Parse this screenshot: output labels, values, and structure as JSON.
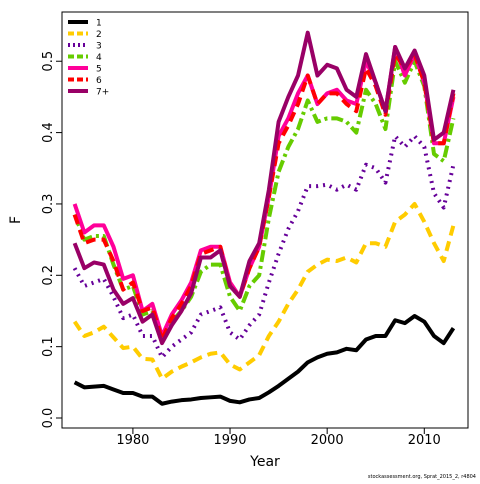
{
  "chart_data": {
    "type": "line",
    "xlabel": "Year",
    "ylabel": "F",
    "footnote": "stockassessment.org, Sprat_2015_2, r4804",
    "x": [
      1974,
      1975,
      1976,
      1977,
      1978,
      1979,
      1980,
      1981,
      1982,
      1983,
      1984,
      1985,
      1986,
      1987,
      1988,
      1989,
      1990,
      1991,
      1992,
      1993,
      1994,
      1995,
      1996,
      1997,
      1998,
      1999,
      2000,
      2001,
      2002,
      2003,
      2004,
      2005,
      2006,
      2007,
      2008,
      2009,
      2010,
      2011,
      2012,
      2013
    ],
    "xlim": [
      1972.7,
      2014.5
    ],
    "xticks": [
      1980,
      1990,
      2000,
      2010
    ],
    "ylim": [
      -0.014,
      0.569
    ],
    "yticks": [
      {
        "value": 0,
        "label": "0.0"
      },
      0.1,
      0.2,
      0.3,
      0.4,
      0.5
    ],
    "legend": "upper-left",
    "series": [
      {
        "name": "1",
        "color": "#000000",
        "linestyle": "solid",
        "values": [
          0.05,
          0.043,
          0.044,
          0.045,
          0.04,
          0.035,
          0.035,
          0.03,
          0.03,
          0.02,
          0.023,
          0.025,
          0.026,
          0.028,
          0.029,
          0.03,
          0.024,
          0.022,
          0.026,
          0.028,
          0.036,
          0.045,
          0.055,
          0.065,
          0.078,
          0.085,
          0.09,
          0.092,
          0.097,
          0.095,
          0.11,
          0.115,
          0.115,
          0.137,
          0.133,
          0.143,
          0.135,
          0.115,
          0.105,
          0.126
        ]
      },
      {
        "name": "2",
        "color": "#ffcc00",
        "linestyle": "dashed",
        "values": [
          0.135,
          0.115,
          0.12,
          0.128,
          0.113,
          0.098,
          0.1,
          0.083,
          0.082,
          0.055,
          0.065,
          0.072,
          0.078,
          0.085,
          0.09,
          0.092,
          0.075,
          0.068,
          0.078,
          0.088,
          0.115,
          0.135,
          0.16,
          0.18,
          0.205,
          0.215,
          0.222,
          0.22,
          0.225,
          0.218,
          0.245,
          0.245,
          0.24,
          0.275,
          0.285,
          0.3,
          0.275,
          0.245,
          0.22,
          0.27
        ]
      },
      {
        "name": "3",
        "color": "#660099",
        "linestyle": "dotted",
        "values": [
          0.21,
          0.185,
          0.19,
          0.195,
          0.17,
          0.14,
          0.145,
          0.115,
          0.115,
          0.085,
          0.1,
          0.11,
          0.12,
          0.145,
          0.15,
          0.155,
          0.12,
          0.11,
          0.13,
          0.145,
          0.19,
          0.23,
          0.265,
          0.29,
          0.325,
          0.325,
          0.327,
          0.32,
          0.327,
          0.32,
          0.355,
          0.35,
          0.33,
          0.395,
          0.38,
          0.395,
          0.38,
          0.315,
          0.295,
          0.355
        ]
      },
      {
        "name": "4",
        "color": "#66cc00",
        "linestyle": "dotdash",
        "values": [
          0.285,
          0.25,
          0.255,
          0.255,
          0.215,
          0.18,
          0.185,
          0.145,
          0.15,
          0.11,
          0.135,
          0.15,
          0.17,
          0.205,
          0.215,
          0.215,
          0.17,
          0.15,
          0.185,
          0.2,
          0.28,
          0.345,
          0.38,
          0.405,
          0.445,
          0.415,
          0.42,
          0.42,
          0.415,
          0.4,
          0.46,
          0.44,
          0.405,
          0.5,
          0.47,
          0.5,
          0.465,
          0.37,
          0.36,
          0.42
        ]
      },
      {
        "name": "5",
        "color": "#ff0099",
        "linestyle": "solid",
        "values": [
          0.3,
          0.26,
          0.27,
          0.27,
          0.24,
          0.195,
          0.2,
          0.15,
          0.16,
          0.115,
          0.145,
          0.165,
          0.19,
          0.235,
          0.24,
          0.24,
          0.19,
          0.17,
          0.21,
          0.24,
          0.31,
          0.395,
          0.42,
          0.455,
          0.48,
          0.44,
          0.455,
          0.46,
          0.445,
          0.44,
          0.5,
          0.47,
          0.43,
          0.52,
          0.48,
          0.51,
          0.47,
          0.385,
          0.385,
          0.45
        ]
      },
      {
        "name": "6",
        "color": "#ff0000",
        "linestyle": "dashed",
        "values": [
          0.285,
          0.245,
          0.25,
          0.25,
          0.22,
          0.18,
          0.19,
          0.15,
          0.155,
          0.11,
          0.14,
          0.16,
          0.185,
          0.23,
          0.235,
          0.24,
          0.185,
          0.17,
          0.21,
          0.24,
          0.31,
          0.385,
          0.41,
          0.44,
          0.48,
          0.44,
          0.455,
          0.455,
          0.44,
          0.43,
          0.49,
          0.465,
          0.425,
          0.51,
          0.49,
          0.51,
          0.47,
          0.385,
          0.385,
          0.455
        ]
      },
      {
        "name": "7+",
        "color": "#990066",
        "linestyle": "solid",
        "values": [
          0.245,
          0.21,
          0.218,
          0.215,
          0.18,
          0.16,
          0.168,
          0.135,
          0.145,
          0.105,
          0.13,
          0.15,
          0.175,
          0.225,
          0.225,
          0.235,
          0.185,
          0.17,
          0.22,
          0.245,
          0.32,
          0.415,
          0.45,
          0.48,
          0.54,
          0.48,
          0.495,
          0.49,
          0.46,
          0.45,
          0.51,
          0.47,
          0.43,
          0.52,
          0.49,
          0.515,
          0.48,
          0.39,
          0.4,
          0.46
        ]
      }
    ]
  }
}
